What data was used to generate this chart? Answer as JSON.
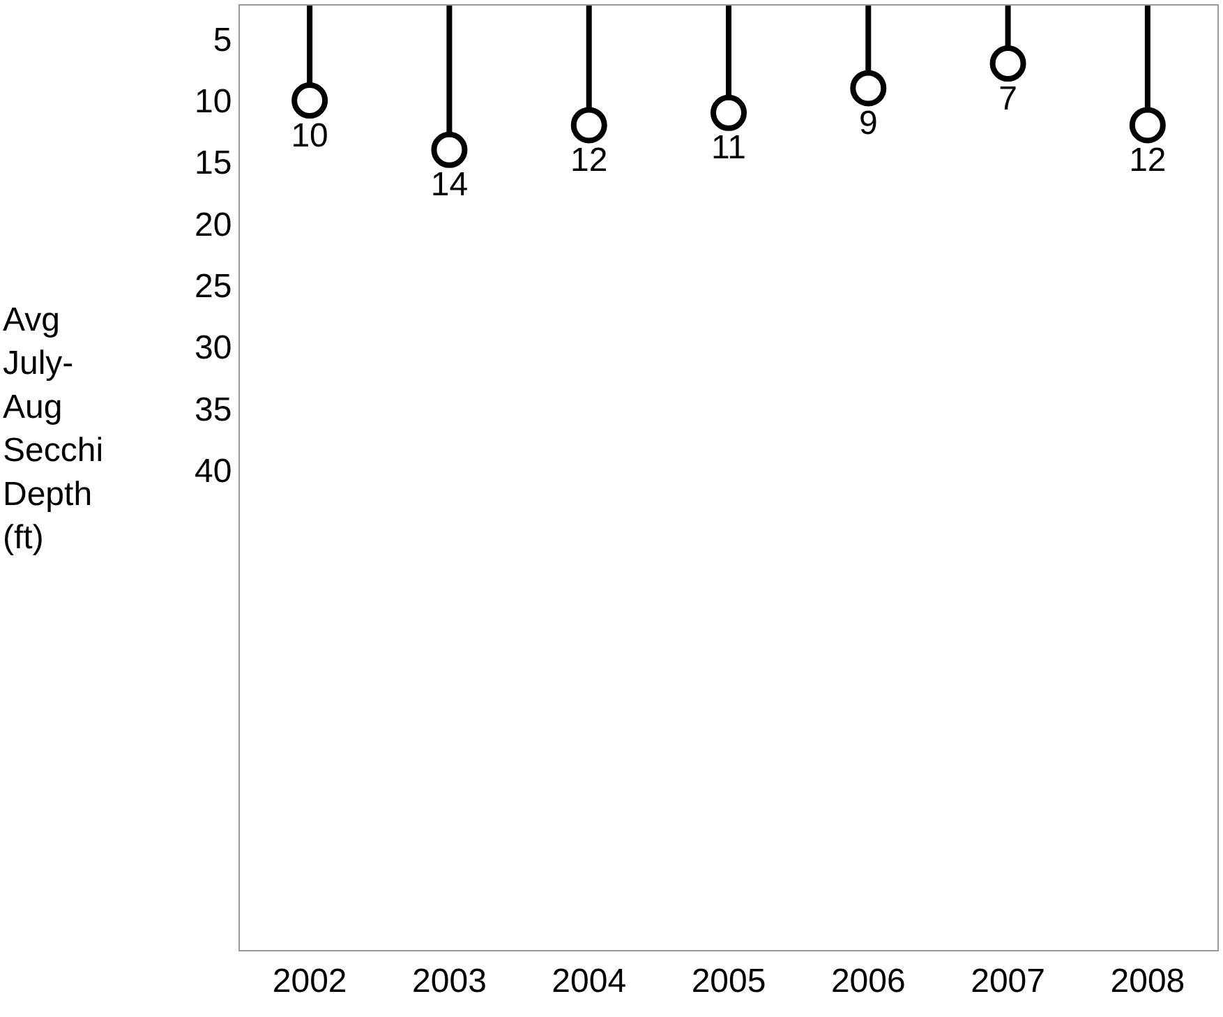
{
  "chart_data": {
    "type": "lollipop",
    "ylabel": "Avg July-Aug Secchi Depth (ft)",
    "categories": [
      "2002",
      "2003",
      "2004",
      "2005",
      "2006",
      "2007",
      "2008"
    ],
    "values": [
      10,
      14,
      12,
      11,
      9,
      7,
      12
    ],
    "color": "#000000",
    "marker": "circle",
    "data_labels": true,
    "grid": false,
    "ylim": [
      78.9,
      2.3
    ],
    "yticks": [
      5,
      10,
      15,
      20,
      25,
      30,
      35,
      40
    ]
  }
}
